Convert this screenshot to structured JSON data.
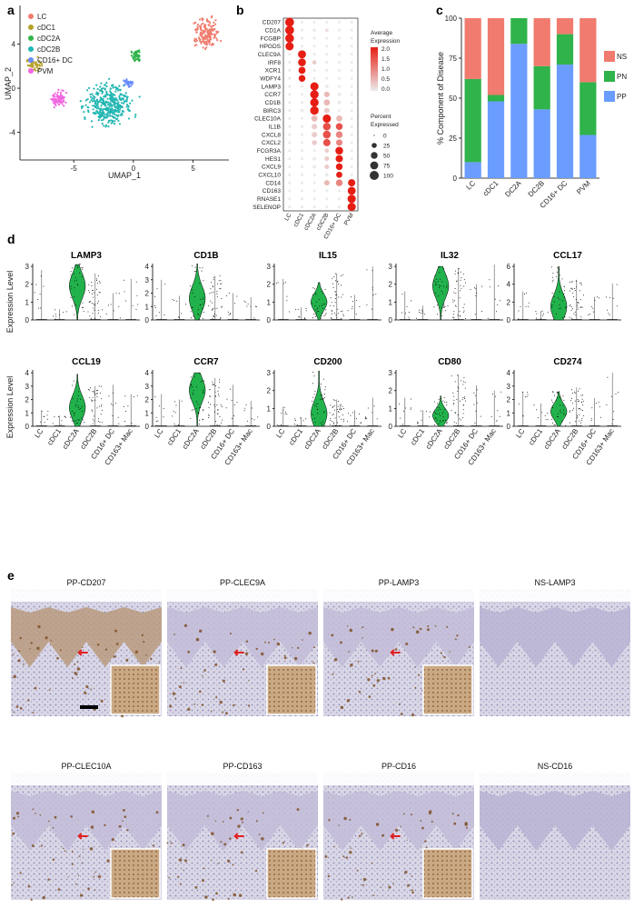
{
  "panels": {
    "a": {
      "letter": "a",
      "xlabel": "UMAP_1",
      "ylabel": "UMAP_2",
      "xticks": [
        "-5",
        "0",
        "5"
      ],
      "yticks": [
        "4",
        "0",
        "-4"
      ],
      "legend": [
        {
          "label": "LC",
          "color": "#f07b6e"
        },
        {
          "label": "cDC1",
          "color": "#b6a22a"
        },
        {
          "label": "cDC2A",
          "color": "#2fb34a"
        },
        {
          "label": "cDC2B",
          "color": "#22b6b2"
        },
        {
          "label": "CD16+ DC",
          "color": "#6b8cff"
        },
        {
          "label": "PVM",
          "color": "#f266e0"
        }
      ]
    },
    "b": {
      "letter": "b",
      "genes": [
        "CD207",
        "CD1A",
        "FCGBP",
        "HPGDS",
        "CLEC9A",
        "IRF8",
        "XCR1",
        "WDFY4",
        "LAMP3",
        "CCR7",
        "CD1B",
        "BIRC3",
        "CLEC10A",
        "IL1B",
        "CXCL8",
        "CXCL2",
        "FCGR3A",
        "HES1",
        "CXCL9",
        "CXCL10",
        "CD14",
        "CD163",
        "RNASE1",
        "SELENOP"
      ],
      "clusters": [
        "LC",
        "cDC1",
        "cDC2A",
        "cDC2B",
        "CD16+ DC",
        "PVM"
      ],
      "legend_title_1": "Average",
      "legend_title_2": "Expression",
      "expr_ticks": [
        "2.0",
        "1.5",
        "1.0",
        "0.5",
        "0.0"
      ],
      "pct_title_1": "Percent",
      "pct_title_2": "Expressed",
      "pct_ticks": [
        "0",
        "25",
        "50",
        "75",
        "100"
      ]
    },
    "c": {
      "letter": "c",
      "ylabel": "% Component of Disease",
      "yticks": [
        "100",
        "75",
        "50",
        "25",
        "0"
      ],
      "legend": [
        {
          "label": "NS",
          "color": "#f07b6e"
        },
        {
          "label": "PN",
          "color": "#2fb34a"
        },
        {
          "label": "PP",
          "color": "#6b9cff"
        }
      ]
    },
    "d": {
      "letter": "d",
      "ylabel": "Expression Level",
      "groups": [
        "LC",
        "cDC1",
        "cDC2A",
        "cDC2B",
        "CD16+ DC",
        "CD163+ Mac"
      ]
    },
    "e": {
      "letter": "e",
      "titles": [
        "PP-CD207",
        "PP-CLEC9A",
        "PP-LAMP3",
        "NS-LAMP3",
        "PP-CLEC10A",
        "PP-CD163",
        "PP-CD16",
        "NS-CD16"
      ]
    }
  },
  "chart_data": [
    {
      "type": "scatter",
      "xlabel": "UMAP_1",
      "ylabel": "UMAP_2",
      "xlim": [
        -9.5,
        8
      ],
      "ylim": [
        -6.5,
        7.5
      ],
      "series": [
        {
          "name": "LC",
          "center": [
            6.2,
            5.0
          ]
        },
        {
          "name": "cDC1",
          "center": [
            -8.3,
            2.2
          ]
        },
        {
          "name": "cDC2A",
          "center": [
            0.2,
            3.0
          ]
        },
        {
          "name": "cDC2B",
          "center": [
            -2.0,
            -1.5
          ]
        },
        {
          "name": "CD16+ DC",
          "center": [
            -0.4,
            0.5
          ]
        },
        {
          "name": "PVM",
          "center": [
            -6.2,
            -1.0
          ]
        }
      ]
    },
    {
      "type": "dot",
      "categories": [
        "LC",
        "cDC1",
        "cDC2A",
        "cDC2B",
        "CD16+ DC",
        "PVM"
      ],
      "series": [
        {
          "name": "CD207",
          "expr": [
            2.0,
            0.0,
            0.0,
            0.0,
            0.0,
            0.0
          ],
          "pct": [
            95,
            5,
            5,
            5,
            5,
            5
          ]
        },
        {
          "name": "CD1A",
          "expr": [
            2.0,
            0.0,
            0.0,
            0.1,
            0.0,
            0.0
          ],
          "pct": [
            95,
            5,
            8,
            10,
            5,
            5
          ]
        },
        {
          "name": "FCGBP",
          "expr": [
            2.0,
            0.0,
            0.0,
            0.0,
            0.0,
            0.0
          ],
          "pct": [
            90,
            5,
            5,
            5,
            5,
            5
          ]
        },
        {
          "name": "HPGDS",
          "expr": [
            2.0,
            0.0,
            0.0,
            0.0,
            0.0,
            0.0
          ],
          "pct": [
            80,
            5,
            5,
            5,
            5,
            5
          ]
        },
        {
          "name": "CLEC9A",
          "expr": [
            0.0,
            2.0,
            0.0,
            0.0,
            0.0,
            0.0
          ],
          "pct": [
            5,
            75,
            5,
            5,
            5,
            5
          ]
        },
        {
          "name": "IRF8",
          "expr": [
            0.0,
            2.0,
            0.3,
            0.0,
            0.0,
            0.0
          ],
          "pct": [
            5,
            70,
            15,
            5,
            5,
            5
          ]
        },
        {
          "name": "XCR1",
          "expr": [
            0.0,
            2.0,
            0.0,
            0.0,
            0.0,
            0.0
          ],
          "pct": [
            5,
            55,
            5,
            5,
            5,
            5
          ]
        },
        {
          "name": "WDFY4",
          "expr": [
            0.0,
            2.0,
            0.0,
            0.0,
            0.0,
            0.0
          ],
          "pct": [
            5,
            50,
            5,
            5,
            5,
            5
          ]
        },
        {
          "name": "LAMP3",
          "expr": [
            0.0,
            0.0,
            2.0,
            0.0,
            0.0,
            0.0
          ],
          "pct": [
            5,
            5,
            80,
            10,
            5,
            5
          ]
        },
        {
          "name": "CCR7",
          "expr": [
            0.0,
            0.0,
            2.0,
            0.5,
            0.0,
            0.0
          ],
          "pct": [
            5,
            5,
            85,
            30,
            10,
            5
          ]
        },
        {
          "name": "CD1B",
          "expr": [
            0.0,
            0.0,
            2.0,
            0.5,
            0.0,
            0.0
          ],
          "pct": [
            5,
            5,
            85,
            40,
            10,
            5
          ]
        },
        {
          "name": "BIRC3",
          "expr": [
            0.0,
            0.0,
            2.0,
            0.3,
            0.0,
            0.0
          ],
          "pct": [
            5,
            10,
            85,
            30,
            5,
            5
          ]
        },
        {
          "name": "CLEC10A",
          "expr": [
            0.0,
            0.0,
            0.5,
            2.0,
            0.5,
            0.0
          ],
          "pct": [
            5,
            5,
            40,
            80,
            40,
            5
          ]
        },
        {
          "name": "IL1B",
          "expr": [
            0.0,
            0.0,
            0.3,
            1.5,
            1.5,
            0.0
          ],
          "pct": [
            5,
            5,
            30,
            70,
            50,
            5
          ]
        },
        {
          "name": "CXCL8",
          "expr": [
            0.0,
            0.0,
            0.3,
            1.5,
            1.0,
            0.0
          ],
          "pct": [
            5,
            5,
            30,
            70,
            50,
            5
          ]
        },
        {
          "name": "CXCL2",
          "expr": [
            0.0,
            0.0,
            0.3,
            1.5,
            1.0,
            0.0
          ],
          "pct": [
            5,
            5,
            25,
            60,
            45,
            5
          ]
        },
        {
          "name": "FCGR3A",
          "expr": [
            0.0,
            0.0,
            0.0,
            0.3,
            2.0,
            0.0
          ],
          "pct": [
            5,
            5,
            5,
            15,
            70,
            5
          ]
        },
        {
          "name": "HES1",
          "expr": [
            0.0,
            0.0,
            0.0,
            0.3,
            2.0,
            0.0
          ],
          "pct": [
            5,
            5,
            10,
            20,
            60,
            5
          ]
        },
        {
          "name": "CXCL9",
          "expr": [
            0.0,
            0.0,
            0.0,
            0.3,
            2.0,
            0.0
          ],
          "pct": [
            5,
            5,
            10,
            20,
            50,
            5
          ]
        },
        {
          "name": "CXCL10",
          "expr": [
            0.0,
            0.0,
            0.0,
            0.0,
            2.0,
            0.0
          ],
          "pct": [
            5,
            5,
            5,
            10,
            40,
            5
          ]
        },
        {
          "name": "CD14",
          "expr": [
            0.0,
            0.0,
            0.0,
            0.5,
            1.0,
            2.0
          ],
          "pct": [
            5,
            5,
            5,
            30,
            50,
            60
          ]
        },
        {
          "name": "CD163",
          "expr": [
            0.0,
            0.0,
            0.0,
            0.0,
            0.0,
            2.0
          ],
          "pct": [
            5,
            5,
            5,
            5,
            5,
            75
          ]
        },
        {
          "name": "RNASE1",
          "expr": [
            0.0,
            0.0,
            0.0,
            0.0,
            0.0,
            2.0
          ],
          "pct": [
            5,
            5,
            5,
            5,
            5,
            80
          ]
        },
        {
          "name": "SELENOP",
          "expr": [
            0.0,
            0.0,
            0.0,
            0.0,
            0.0,
            2.0
          ],
          "pct": [
            5,
            5,
            5,
            5,
            5,
            80
          ]
        }
      ]
    },
    {
      "type": "bar",
      "stacked": true,
      "categories": [
        "LC",
        "cDC1",
        "DC2A",
        "DC2B",
        "CD16+ DC",
        "PVM"
      ],
      "ylabel": "% Component of Disease",
      "ylim": [
        0,
        100
      ],
      "series": [
        {
          "name": "PP",
          "values": [
            10,
            48,
            84,
            43,
            71,
            27
          ]
        },
        {
          "name": "PN",
          "values": [
            52,
            4,
            16,
            27,
            19,
            33
          ]
        },
        {
          "name": "NS",
          "values": [
            38,
            48,
            0,
            30,
            10,
            40
          ]
        }
      ]
    },
    {
      "type": "violin",
      "ylabel": "Expression Level",
      "categories": [
        "LC",
        "cDC1",
        "cDC2A",
        "cDC2B",
        "CD16+ DC",
        "CD163+ Mac"
      ],
      "panels": [
        {
          "title": "LAMP3",
          "ymax": 3,
          "yticks": [
            0,
            1,
            2,
            3
          ],
          "main_index": 2,
          "peak": 1.9,
          "top": 3.1,
          "spread": [
            2.8,
            0.6,
            3.2,
            2.6,
            1.5,
            2.3
          ]
        },
        {
          "title": "CD1B",
          "ymax": 4,
          "yticks": [
            0,
            1,
            2,
            3,
            4
          ],
          "main_index": 2,
          "peak": 1.6,
          "top": 4.2,
          "spread": [
            3.0,
            1.8,
            4.2,
            3.3,
            2.0,
            1.7
          ]
        },
        {
          "title": "IL15",
          "ymax": 3,
          "yticks": [
            0,
            1,
            2,
            3
          ],
          "main_index": 2,
          "peak": 1.0,
          "top": 2.1,
          "spread": [
            2.3,
            0.7,
            2.1,
            2.6,
            1.4,
            3.0
          ]
        },
        {
          "title": "IL32",
          "ymax": 3,
          "yticks": [
            0,
            1,
            2,
            3
          ],
          "main_index": 2,
          "peak": 1.9,
          "top": 3.0,
          "spread": [
            1.6,
            0.8,
            3.0,
            2.9,
            2.0,
            3.1
          ]
        },
        {
          "title": "CCL17",
          "ymax": 6,
          "yticks": [
            0,
            2,
            4,
            6
          ],
          "main_index": 2,
          "peak": 1.5,
          "top": 6.0,
          "spread": [
            3.2,
            1.0,
            6.0,
            4.5,
            2.6,
            4.1
          ]
        },
        {
          "title": "CCL19",
          "ymax": 4,
          "yticks": [
            0,
            1,
            2,
            3,
            4
          ],
          "main_index": 2,
          "peak": 1.4,
          "top": 3.9,
          "spread": [
            1.2,
            0.8,
            3.9,
            3.0,
            3.1,
            2.4
          ]
        },
        {
          "title": "CCR7",
          "ymax": 4,
          "yticks": [
            0,
            1,
            2,
            3,
            4
          ],
          "main_index": 2,
          "peak": 2.7,
          "top": 4.0,
          "spread": [
            2.4,
            2.0,
            4.0,
            3.6,
            3.1,
            1.9
          ]
        },
        {
          "title": "CD200",
          "ymax": 3,
          "yticks": [
            0,
            1,
            2,
            3
          ],
          "main_index": 2,
          "peak": 0.7,
          "top": 3.1,
          "spread": [
            1.1,
            0.5,
            3.1,
            1.5,
            0.9,
            1.6
          ]
        },
        {
          "title": "CD80",
          "ymax": 3,
          "yticks": [
            0,
            1,
            2,
            3
          ],
          "main_index": 2,
          "peak": 0.6,
          "top": 1.7,
          "spread": [
            1.6,
            0.9,
            1.7,
            2.9,
            2.3,
            2.0
          ]
        },
        {
          "title": "CD274",
          "ymax": 4,
          "yticks": [
            0,
            1,
            2,
            3,
            4
          ],
          "main_index": 2,
          "peak": 1.1,
          "top": 2.6,
          "spread": [
            2.6,
            1.7,
            2.6,
            2.9,
            2.1,
            4.0
          ]
        }
      ]
    }
  ]
}
